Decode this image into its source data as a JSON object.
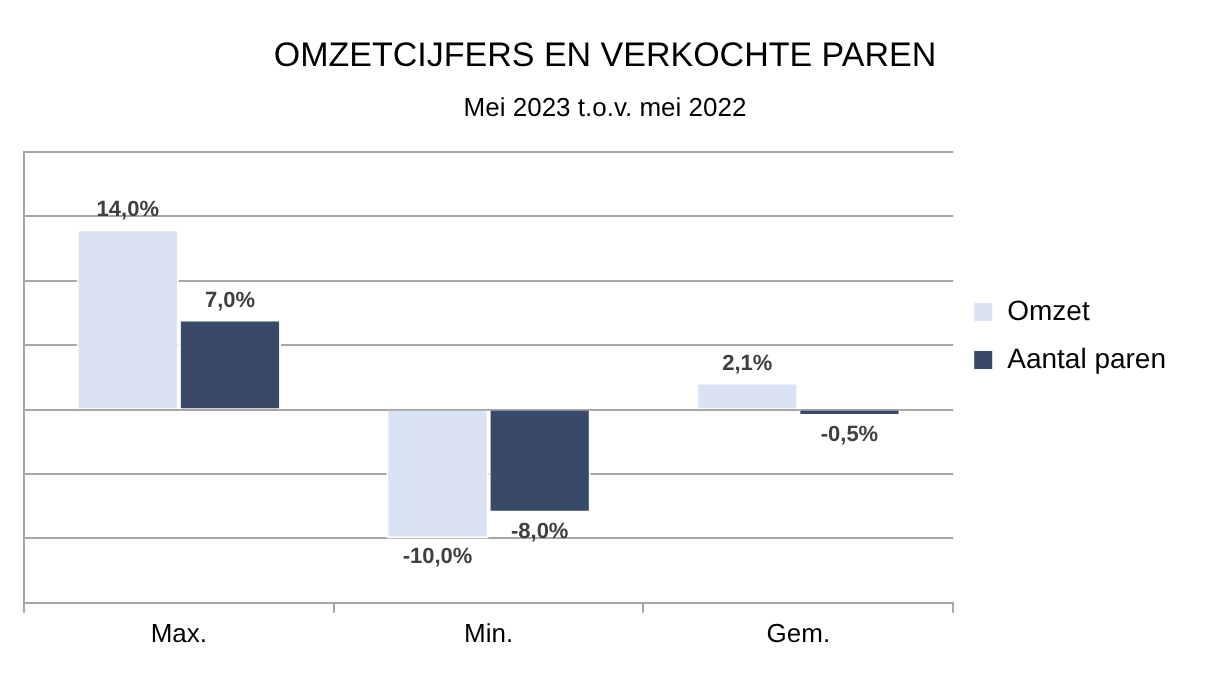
{
  "chart_data": {
    "type": "bar",
    "title": "OMZETCIJFERS EN VERKOCHTE PAREN",
    "subtitle": "Mei 2023 t.o.v. mei 2022",
    "categories": [
      "Max.",
      "Min.",
      "Gem."
    ],
    "series": [
      {
        "name": "Omzet",
        "color": "#dae3f3",
        "values": [
          14.0,
          -10.0,
          2.1
        ],
        "value_labels": [
          "14,0%",
          "-10,0%",
          "2,1%"
        ]
      },
      {
        "name": "Aantal paren",
        "color": "#384a68",
        "values": [
          7.0,
          -8.0,
          -0.5
        ],
        "value_labels": [
          "7,0%",
          "-8,0%",
          "-0,5%"
        ]
      }
    ],
    "ylim": [
      -15,
      20
    ],
    "yticks": [
      {
        "value": -15,
        "label": null
      },
      {
        "value": -10,
        "label": null
      },
      {
        "value": -5,
        "label": null
      },
      {
        "value": 0,
        "label": null
      },
      {
        "value": 5,
        "label": null
      },
      {
        "value": 10,
        "label": null
      },
      {
        "value": 15,
        "label": null
      },
      {
        "value": 20,
        "label": null
      }
    ],
    "grid": "y",
    "legend": "right"
  }
}
